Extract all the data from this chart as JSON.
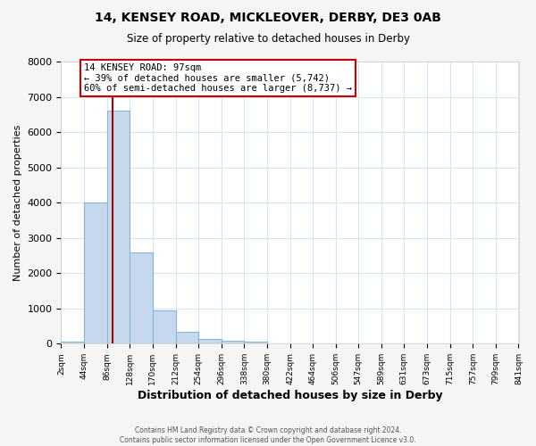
{
  "title": "14, KENSEY ROAD, MICKLEOVER, DERBY, DE3 0AB",
  "subtitle": "Size of property relative to detached houses in Derby",
  "xlabel": "Distribution of detached houses by size in Derby",
  "ylabel": "Number of detached properties",
  "bar_color": "#c5d8ed",
  "bar_edge_color": "#89b4d4",
  "plot_bg_color": "#ffffff",
  "fig_bg_color": "#f5f5f5",
  "grid_color": "#d8e4f0",
  "bins": [
    2,
    44,
    86,
    128,
    170,
    212,
    254,
    296,
    338,
    380,
    422,
    464,
    506,
    547,
    589,
    631,
    673,
    715,
    757,
    799,
    841
  ],
  "counts": [
    70,
    4000,
    6600,
    2600,
    950,
    330,
    130,
    80,
    50,
    0,
    0,
    0,
    0,
    0,
    0,
    0,
    0,
    0,
    0,
    0
  ],
  "property_size": 97,
  "vline_color": "#aa0000",
  "annotation_text": "14 KENSEY ROAD: 97sqm\n← 39% of detached houses are smaller (5,742)\n60% of semi-detached houses are larger (8,737) →",
  "annotation_box_edgecolor": "#cc0000",
  "annotation_box_facecolor": "#ffffff",
  "ylim": [
    0,
    8000
  ],
  "yticks": [
    0,
    1000,
    2000,
    3000,
    4000,
    5000,
    6000,
    7000,
    8000
  ],
  "footer_text": "Contains HM Land Registry data © Crown copyright and database right 2024.\nContains public sector information licensed under the Open Government Licence v3.0.",
  "tick_labels": [
    "2sqm",
    "44sqm",
    "86sqm",
    "128sqm",
    "170sqm",
    "212sqm",
    "254sqm",
    "296sqm",
    "338sqm",
    "380sqm",
    "422sqm",
    "464sqm",
    "506sqm",
    "547sqm",
    "589sqm",
    "631sqm",
    "673sqm",
    "715sqm",
    "757sqm",
    "799sqm",
    "841sqm"
  ]
}
